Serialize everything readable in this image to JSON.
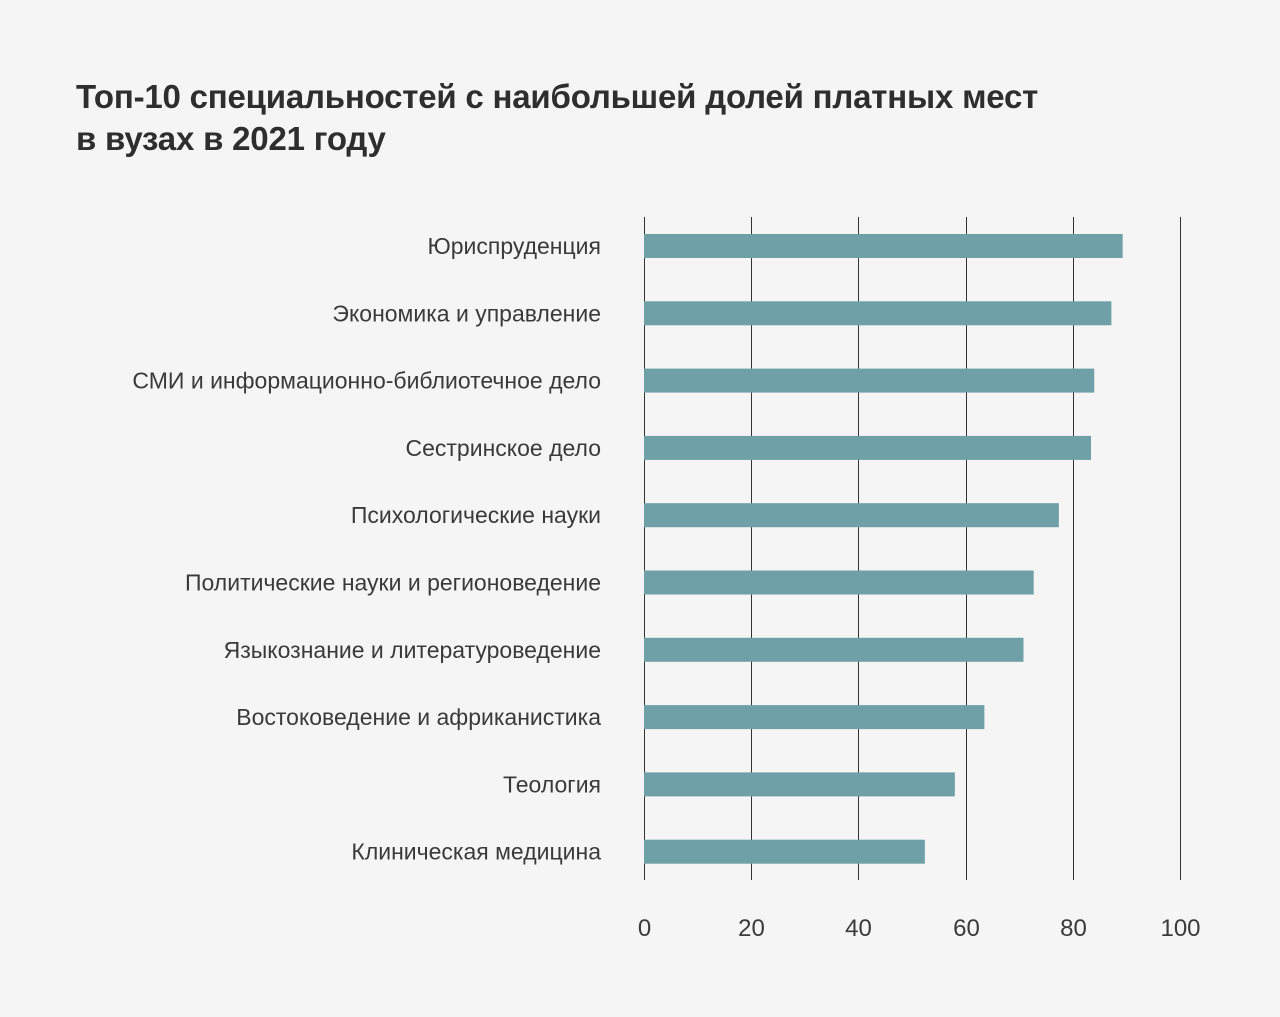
{
  "chart_data": {
    "type": "bar",
    "orientation": "horizontal",
    "title_lines": [
      "Топ-10 специальностей с наибольшей долей платных мест",
      "в вузах в 2021 году"
    ],
    "categories": [
      "Юриспруденция",
      "Экономика и управление",
      "СМИ и информационно-библиотечное дело",
      "Сестринское дело",
      "Психологические науки",
      "Политические науки и регионоведение",
      "Языкознание и литературоведение",
      "Востоковедение и африканистика",
      "Теология",
      "Клиническая медицина"
    ],
    "values": [
      89.3,
      87.2,
      84.0,
      83.4,
      77.4,
      72.7,
      70.8,
      63.5,
      58.0,
      52.4
    ],
    "xlim": [
      0,
      100
    ],
    "xticks": [
      0,
      20,
      40,
      60,
      80,
      100
    ],
    "xticks_labels": [
      "0",
      "20",
      "40",
      "60",
      "80",
      "100"
    ],
    "grid": "vertical",
    "bar_color": "#6fa0a8",
    "grid_color": "#333333"
  }
}
